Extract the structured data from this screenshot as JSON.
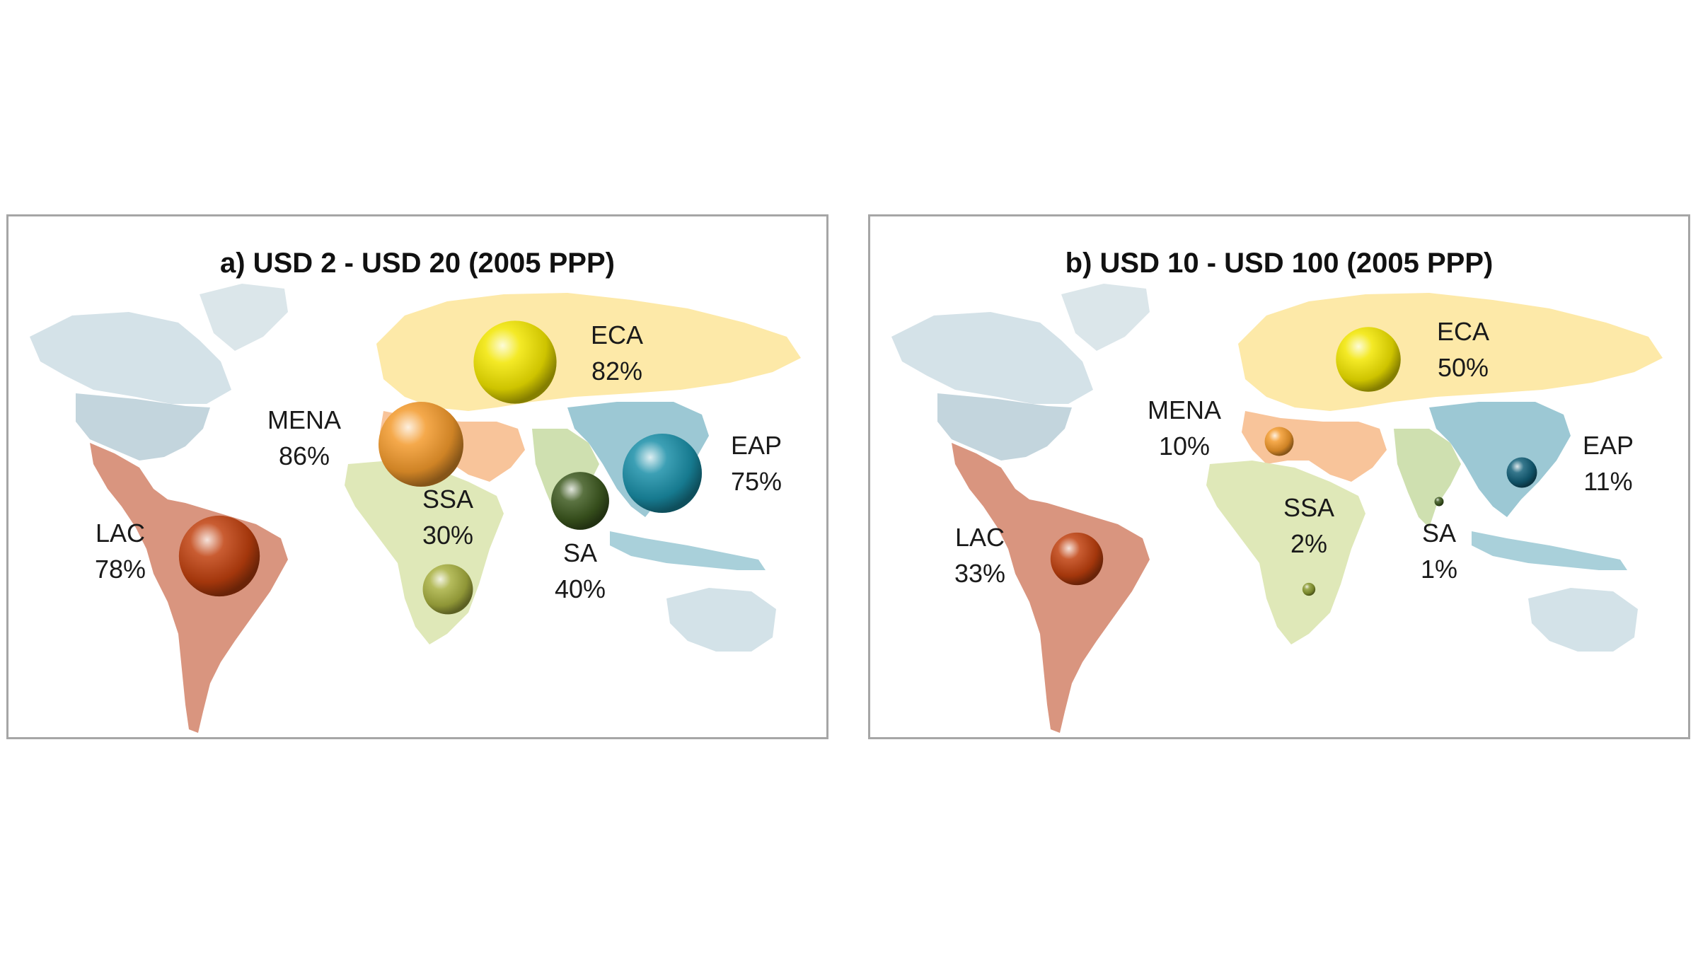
{
  "panels": [
    {
      "id": "a",
      "title": "a) USD 2 - USD 20 (2005 PPP)",
      "regions": [
        {
          "code": "ECA",
          "value": "82%",
          "share": 82,
          "color": "#f2e600"
        },
        {
          "code": "MENA",
          "value": "86%",
          "share": 86,
          "color": "#f39a2c"
        },
        {
          "code": "EAP",
          "value": "75%",
          "share": 75,
          "color": "#1a8fa8"
        },
        {
          "code": "SSA",
          "value": "30%",
          "share": 30,
          "color": "#a8b040"
        },
        {
          "code": "SA",
          "value": "40%",
          "share": 40,
          "color": "#3e5a20"
        },
        {
          "code": "LAC",
          "value": "78%",
          "share": 78,
          "color": "#c0400e"
        }
      ]
    },
    {
      "id": "b",
      "title": "b) USD 10 - USD 100 (2005 PPP)",
      "regions": [
        {
          "code": "ECA",
          "value": "50%",
          "share": 50,
          "color": "#f2e600"
        },
        {
          "code": "MENA",
          "value": "10%",
          "share": 10,
          "color": "#f39a2c"
        },
        {
          "code": "EAP",
          "value": "11%",
          "share": 11,
          "color": "#125f78"
        },
        {
          "code": "SSA",
          "value": "2%",
          "share": 2,
          "color": "#8a9a30"
        },
        {
          "code": "SA",
          "value": "1%",
          "share": 1,
          "color": "#3e5a20"
        },
        {
          "code": "LAC",
          "value": "33%",
          "share": 33,
          "color": "#c0400e"
        }
      ]
    }
  ],
  "region_fill_colors": {
    "north_america": "#c9d9e0",
    "greenland": "#dbe6ea",
    "latin_america": "#d9957f",
    "europe_central_asia": "#fde9a8",
    "mena": "#f8c49a",
    "sub_saharan_africa": "#dfe8b8",
    "south_asia": "#cfe0b0",
    "east_asia_pacific": "#9cc8d4",
    "oceania": "#d3e2e8"
  }
}
